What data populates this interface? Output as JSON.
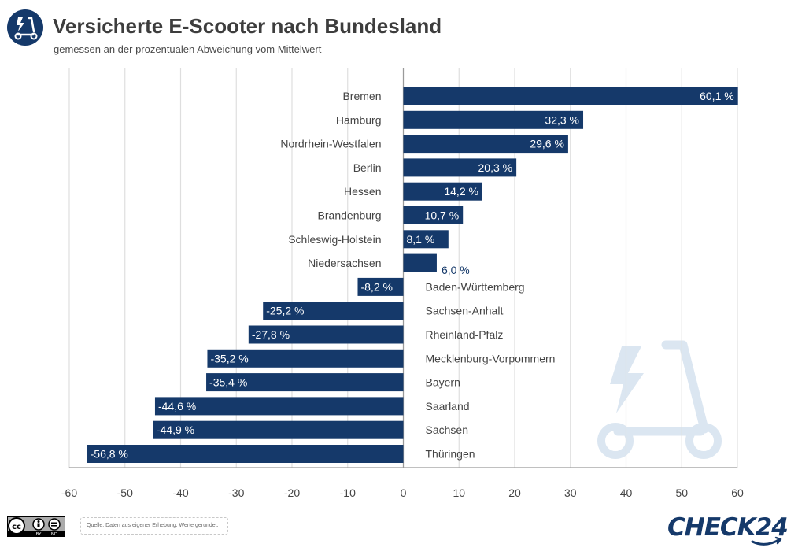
{
  "header": {
    "title": "Versicherte E-Scooter nach Bundesland",
    "subtitle": "gemessen an der prozentualen Abweichung vom Mittelwert",
    "icon": "scooter-icon"
  },
  "chart_data": {
    "type": "bar",
    "orientation": "horizontal",
    "categories": [
      "Bremen",
      "Hamburg",
      "Nordrhein-Westfalen",
      "Berlin",
      "Hessen",
      "Brandenburg",
      "Schleswig-Holstein",
      "Niedersachsen",
      "Baden-Württemberg",
      "Sachsen-Anhalt",
      "Rheinland-Pfalz",
      "Mecklenburg-Vorpommern",
      "Bayern",
      "Saarland",
      "Sachsen",
      "Thüringen"
    ],
    "values": [
      60.1,
      32.3,
      29.6,
      20.3,
      14.2,
      10.7,
      8.1,
      6.0,
      -8.2,
      -25.2,
      -27.8,
      -35.2,
      -35.4,
      -44.6,
      -44.9,
      -56.8
    ],
    "value_labels": [
      "60,1 %",
      "32,3 %",
      "29,6 %",
      "20,3 %",
      "14,2 %",
      "10,7 %",
      "8,1 %",
      "6,0 %",
      "-8,2 %",
      "-25,2 %",
      "-27,8 %",
      "-35,2 %",
      "-35,4 %",
      "-44,6 %",
      "-44,9 %",
      "-56,8 %"
    ],
    "xlim": [
      -60,
      60
    ],
    "xticks": [
      "-60",
      "-50",
      "-40",
      "-30",
      "-20",
      "-10",
      "0",
      "10",
      "20",
      "30",
      "40",
      "50",
      "60"
    ],
    "grid": true,
    "bar_color": "#15396a",
    "grid_color": "#dedede"
  },
  "footer": {
    "source": "Quelle: Daten aus eigener Erhebung; Werte gerundet.",
    "license_icon": "cc-by-nd-icon",
    "cc_by": "BY",
    "cc_nd": "ND",
    "brand": "CHECK24"
  },
  "colors": {
    "primary": "#15396a",
    "watermark": "#dbe6f1"
  }
}
